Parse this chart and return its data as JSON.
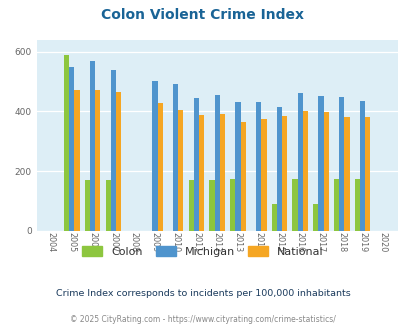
{
  "title": "Colon Violent Crime Index",
  "title_color": "#1a6496",
  "years": [
    2004,
    2005,
    2006,
    2007,
    2008,
    2009,
    2010,
    2011,
    2012,
    2013,
    2014,
    2015,
    2016,
    2017,
    2018,
    2019,
    2020
  ],
  "colon": [
    0,
    588,
    170,
    170,
    0,
    0,
    0,
    170,
    170,
    175,
    0,
    90,
    175,
    90,
    175,
    175,
    0
  ],
  "michigan": [
    0,
    550,
    568,
    538,
    0,
    500,
    490,
    445,
    455,
    430,
    430,
    415,
    460,
    450,
    448,
    435,
    0
  ],
  "national": [
    0,
    470,
    472,
    465,
    0,
    428,
    404,
    388,
    390,
    365,
    375,
    383,
    400,
    397,
    382,
    380,
    0
  ],
  "colon_color": "#8dc63f",
  "michigan_color": "#4f94cd",
  "national_color": "#f5a623",
  "bg_color": "#ddeef6",
  "fig_bg": "#ffffff",
  "ylim": [
    0,
    640
  ],
  "yticks": [
    0,
    200,
    400,
    600
  ],
  "bar_width": 0.25,
  "subtitle": "Crime Index corresponds to incidents per 100,000 inhabitants",
  "footer": "© 2025 CityRating.com - https://www.cityrating.com/crime-statistics/",
  "subtitle_color": "#1a3a5c",
  "footer_color": "#888888"
}
